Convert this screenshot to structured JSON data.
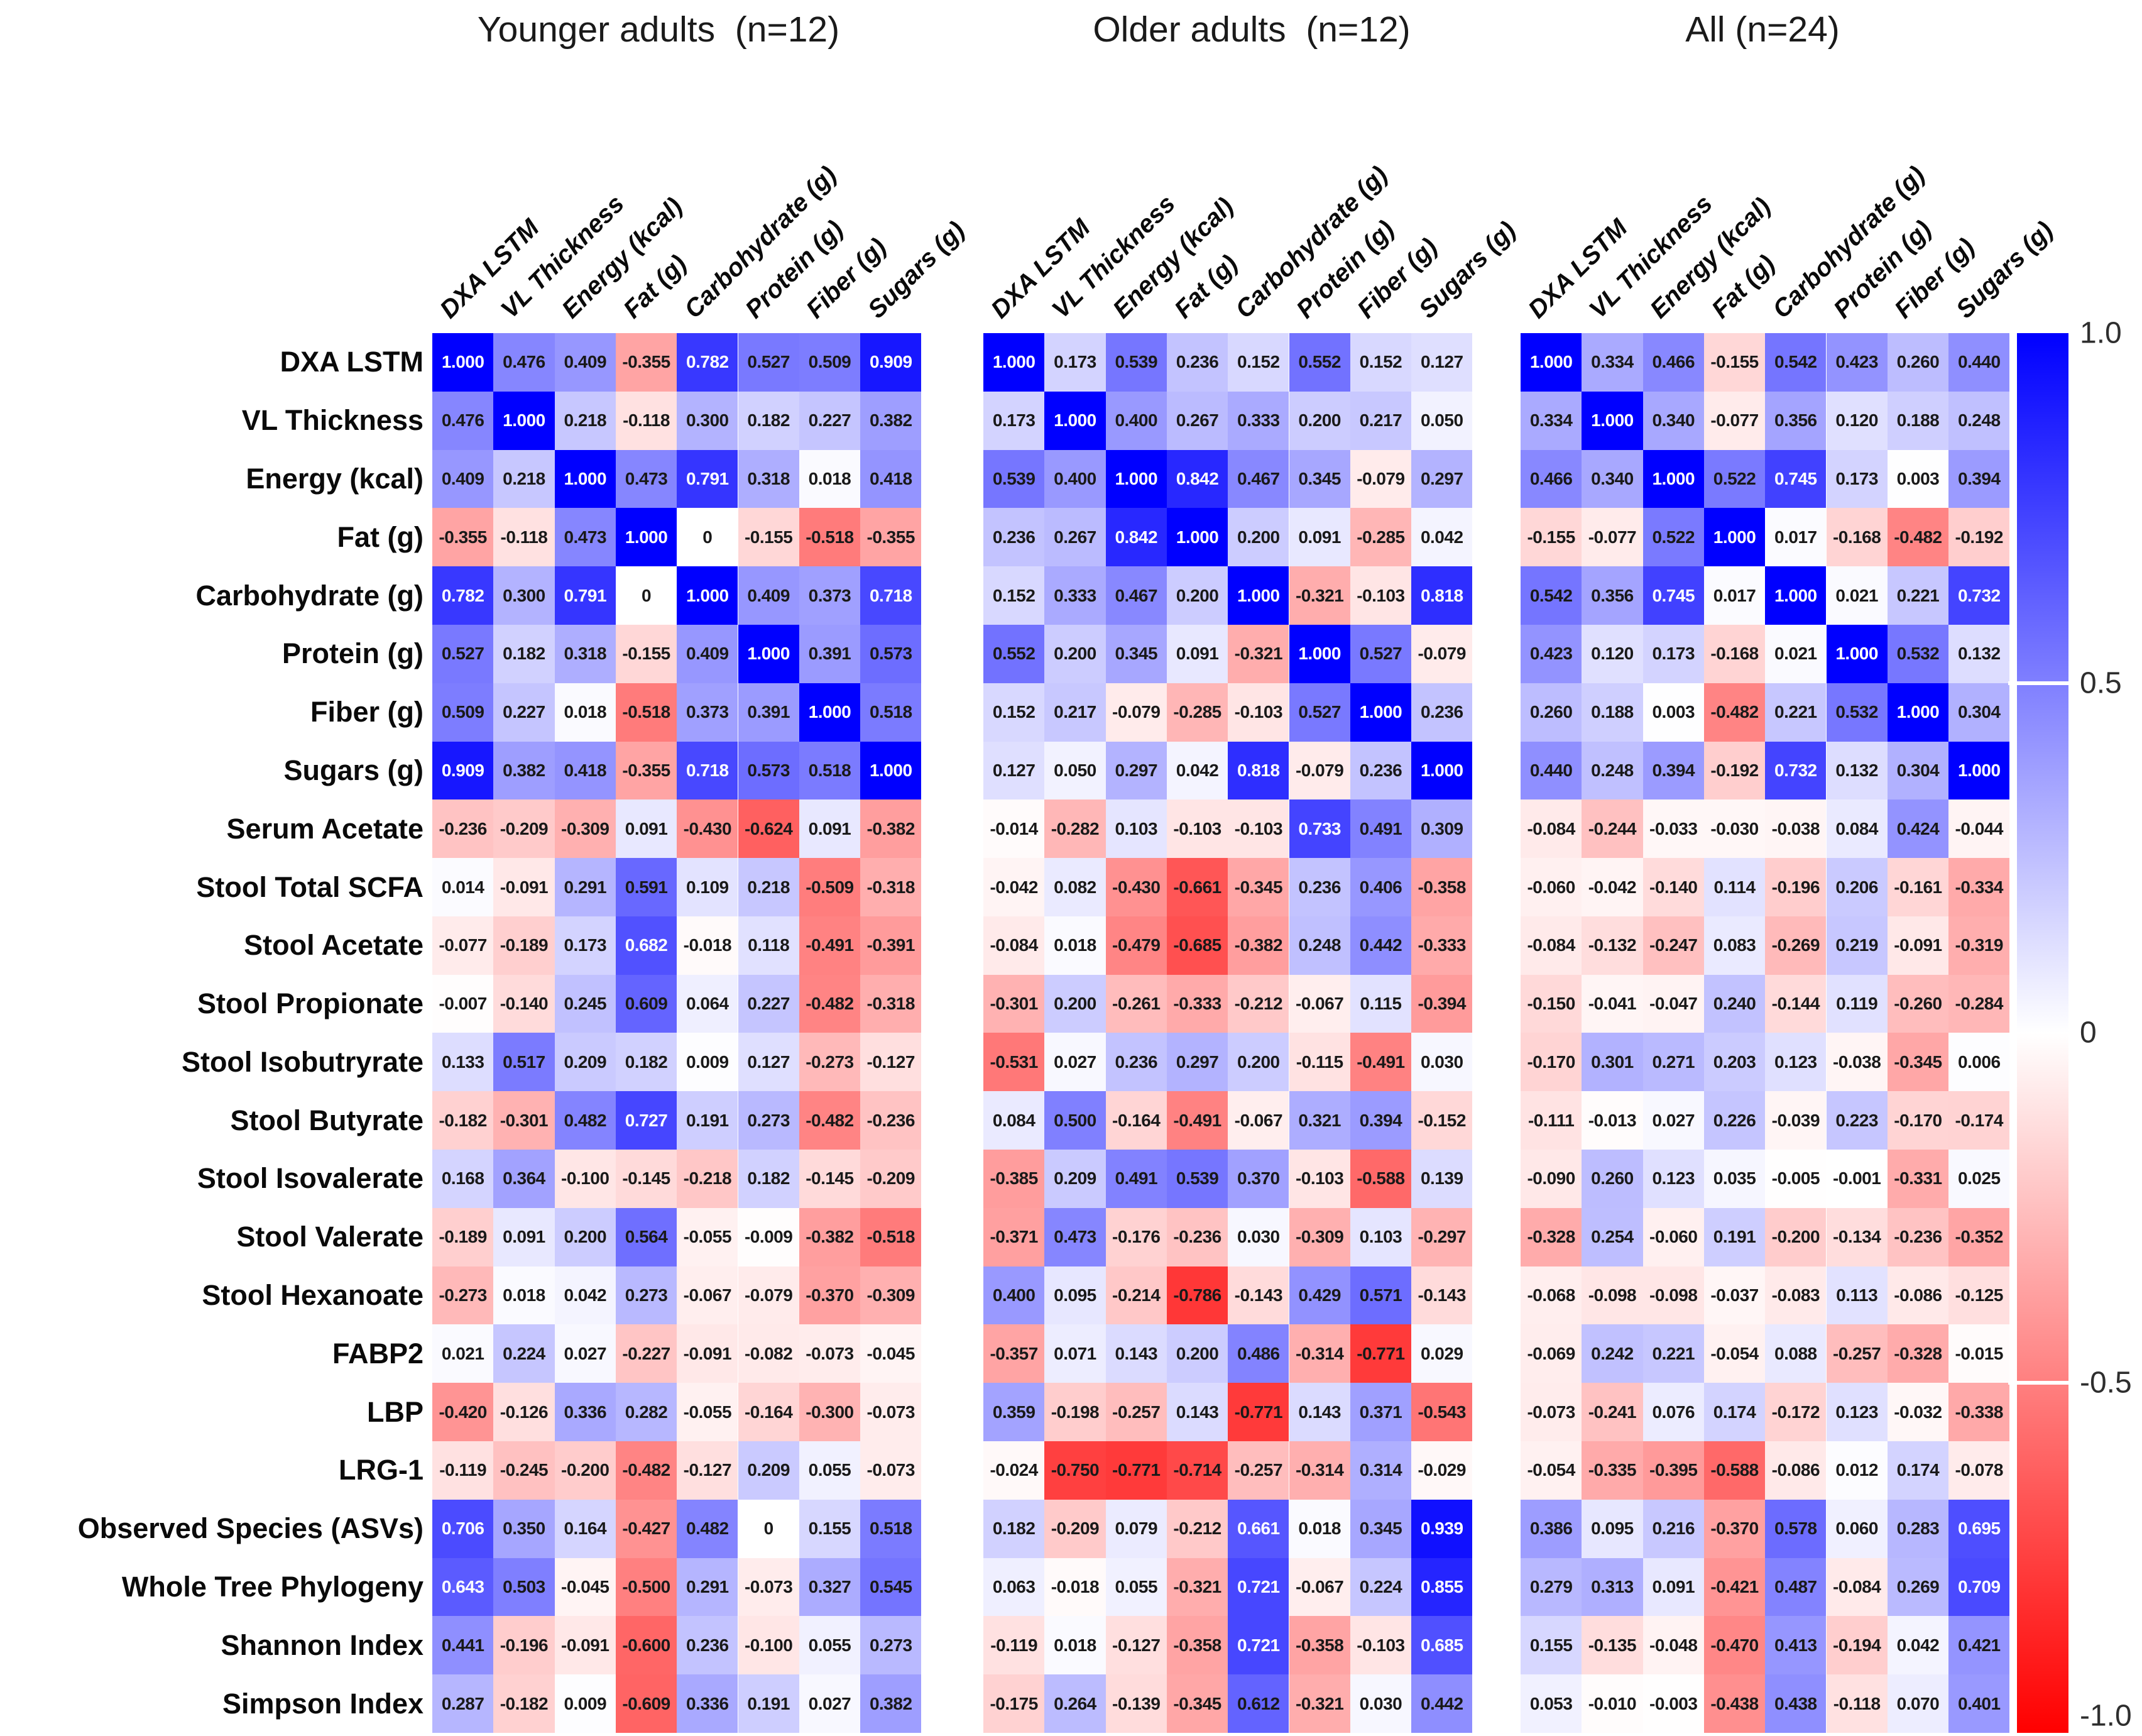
{
  "chart_data": {
    "type": "heatmap",
    "value_range": [
      -1,
      1
    ],
    "grid": false,
    "legend_position": "right",
    "colorscale": {
      "max_color": "#0000ff",
      "mid_color": "#ffffff",
      "min_color": "#ff0000"
    },
    "colorbar": {
      "tick_labels": [
        "1.0",
        "0.5",
        "0",
        "-0.5",
        "-1.0"
      ],
      "tick_values": [
        1.0,
        0.5,
        0,
        -0.5,
        -1.0
      ]
    },
    "columns": [
      "DXA LSTM",
      "VL Thickness",
      "Energy (kcal)",
      "Fat (g)",
      "Carbohydrate (g)",
      "Protein (g)",
      "Fiber (g)",
      "Sugars (g)"
    ],
    "rows": [
      "DXA LSTM",
      "VL Thickness",
      "Energy (kcal)",
      "Fat (g)",
      "Carbohydrate (g)",
      "Protein (g)",
      "Fiber (g)",
      "Sugars (g)",
      "Serum Acetate",
      "Stool Total SCFA",
      "Stool Acetate",
      "Stool Propionate",
      "Stool Isobutryrate",
      "Stool Butyrate",
      "Stool Isovalerate",
      "Stool Valerate",
      "Stool Hexanoate",
      "FABP2",
      "LBP",
      "LRG-1",
      "Observed Species (ASVs)",
      "Whole Tree Phylogeny",
      "Shannon Index",
      "Simpson Index"
    ],
    "panels": [
      {
        "title": "Younger adults  (n=12)",
        "values": [
          [
            "1.000",
            "0.476",
            "0.409",
            "-0.355",
            "0.782",
            "0.527",
            "0.509",
            "0.909"
          ],
          [
            "0.476",
            "1.000",
            "0.218",
            "-0.118",
            "0.300",
            "0.182",
            "0.227",
            "0.382"
          ],
          [
            "0.409",
            "0.218",
            "1.000",
            "0.473",
            "0.791",
            "0.318",
            "0.018",
            "0.418"
          ],
          [
            "-0.355",
            "-0.118",
            "0.473",
            "1.000",
            "0",
            "-0.155",
            "-0.518",
            "-0.355"
          ],
          [
            "0.782",
            "0.300",
            "0.791",
            "0",
            "1.000",
            "0.409",
            "0.373",
            "0.718"
          ],
          [
            "0.527",
            "0.182",
            "0.318",
            "-0.155",
            "0.409",
            "1.000",
            "0.391",
            "0.573"
          ],
          [
            "0.509",
            "0.227",
            "0.018",
            "-0.518",
            "0.373",
            "0.391",
            "1.000",
            "0.518"
          ],
          [
            "0.909",
            "0.382",
            "0.418",
            "-0.355",
            "0.718",
            "0.573",
            "0.518",
            "1.000"
          ],
          [
            "-0.236",
            "-0.209",
            "-0.309",
            "0.091",
            "-0.430",
            "-0.624",
            "0.091",
            "-0.382"
          ],
          [
            "0.014",
            "-0.091",
            "0.291",
            "0.591",
            "0.109",
            "0.218",
            "-0.509",
            "-0.318"
          ],
          [
            "-0.077",
            "-0.189",
            "0.173",
            "0.682",
            "-0.018",
            "0.118",
            "-0.491",
            "-0.391"
          ],
          [
            "-0.007",
            "-0.140",
            "0.245",
            "0.609",
            "0.064",
            "0.227",
            "-0.482",
            "-0.318"
          ],
          [
            "0.133",
            "0.517",
            "0.209",
            "0.182",
            "0.009",
            "0.127",
            "-0.273",
            "-0.127"
          ],
          [
            "-0.182",
            "-0.301",
            "0.482",
            "0.727",
            "0.191",
            "0.273",
            "-0.482",
            "-0.236"
          ],
          [
            "0.168",
            "0.364",
            "-0.100",
            "-0.145",
            "-0.218",
            "0.182",
            "-0.145",
            "-0.209"
          ],
          [
            "-0.189",
            "0.091",
            "0.200",
            "0.564",
            "-0.055",
            "-0.009",
            "-0.382",
            "-0.518"
          ],
          [
            "-0.273",
            "0.018",
            "0.042",
            "0.273",
            "-0.067",
            "-0.079",
            "-0.370",
            "-0.309"
          ],
          [
            "0.021",
            "0.224",
            "0.027",
            "-0.227",
            "-0.091",
            "-0.082",
            "-0.073",
            "-0.045"
          ],
          [
            "-0.420",
            "-0.126",
            "0.336",
            "0.282",
            "-0.055",
            "-0.164",
            "-0.300",
            "-0.073"
          ],
          [
            "-0.119",
            "-0.245",
            "-0.200",
            "-0.482",
            "-0.127",
            "0.209",
            "0.055",
            "-0.073"
          ],
          [
            "0.706",
            "0.350",
            "0.164",
            "-0.427",
            "0.482",
            "0",
            "0.155",
            "0.518"
          ],
          [
            "0.643",
            "0.503",
            "-0.045",
            "-0.500",
            "0.291",
            "-0.073",
            "0.327",
            "0.545"
          ],
          [
            "0.441",
            "-0.196",
            "-0.091",
            "-0.600",
            "0.236",
            "-0.100",
            "0.055",
            "0.273"
          ],
          [
            "0.287",
            "-0.182",
            "0.009",
            "-0.609",
            "0.336",
            "0.191",
            "0.027",
            "0.382"
          ]
        ]
      },
      {
        "title": "Older adults  (n=12)",
        "values": [
          [
            "1.000",
            "0.173",
            "0.539",
            "0.236",
            "0.152",
            "0.552",
            "0.152",
            "0.127"
          ],
          [
            "0.173",
            "1.000",
            "0.400",
            "0.267",
            "0.333",
            "0.200",
            "0.217",
            "0.050"
          ],
          [
            "0.539",
            "0.400",
            "1.000",
            "0.842",
            "0.467",
            "0.345",
            "-0.079",
            "0.297"
          ],
          [
            "0.236",
            "0.267",
            "0.842",
            "1.000",
            "0.200",
            "0.091",
            "-0.285",
            "0.042"
          ],
          [
            "0.152",
            "0.333",
            "0.467",
            "0.200",
            "1.000",
            "-0.321",
            "-0.103",
            "0.818"
          ],
          [
            "0.552",
            "0.200",
            "0.345",
            "0.091",
            "-0.321",
            "1.000",
            "0.527",
            "-0.079"
          ],
          [
            "0.152",
            "0.217",
            "-0.079",
            "-0.285",
            "-0.103",
            "0.527",
            "1.000",
            "0.236"
          ],
          [
            "0.127",
            "0.050",
            "0.297",
            "0.042",
            "0.818",
            "-0.079",
            "0.236",
            "1.000"
          ],
          [
            "-0.014",
            "-0.282",
            "0.103",
            "-0.103",
            "-0.103",
            "0.733",
            "0.491",
            "0.309"
          ],
          [
            "-0.042",
            "0.082",
            "-0.430",
            "-0.661",
            "-0.345",
            "0.236",
            "0.406",
            "-0.358"
          ],
          [
            "-0.084",
            "0.018",
            "-0.479",
            "-0.685",
            "-0.382",
            "0.248",
            "0.442",
            "-0.333"
          ],
          [
            "-0.301",
            "0.200",
            "-0.261",
            "-0.333",
            "-0.212",
            "-0.067",
            "0.115",
            "-0.394"
          ],
          [
            "-0.531",
            "0.027",
            "0.236",
            "0.297",
            "0.200",
            "-0.115",
            "-0.491",
            "0.030"
          ],
          [
            "0.084",
            "0.500",
            "-0.164",
            "-0.491",
            "-0.067",
            "0.321",
            "0.394",
            "-0.152"
          ],
          [
            "-0.385",
            "0.209",
            "0.491",
            "0.539",
            "0.370",
            "-0.103",
            "-0.588",
            "0.139"
          ],
          [
            "-0.371",
            "0.473",
            "-0.176",
            "-0.236",
            "0.030",
            "-0.309",
            "0.103",
            "-0.297"
          ],
          [
            "0.400",
            "0.095",
            "-0.214",
            "-0.786",
            "-0.143",
            "0.429",
            "0.571",
            "-0.143"
          ],
          [
            "-0.357",
            "0.071",
            "0.143",
            "0.200",
            "0.486",
            "-0.314",
            "-0.771",
            "0.029"
          ],
          [
            "0.359",
            "-0.198",
            "-0.257",
            "0.143",
            "-0.771",
            "0.143",
            "0.371",
            "-0.543"
          ],
          [
            "-0.024",
            "-0.750",
            "-0.771",
            "-0.714",
            "-0.257",
            "-0.314",
            "0.314",
            "-0.029"
          ],
          [
            "0.182",
            "-0.209",
            "0.079",
            "-0.212",
            "0.661",
            "0.018",
            "0.345",
            "0.939"
          ],
          [
            "0.063",
            "-0.018",
            "0.055",
            "-0.321",
            "0.721",
            "-0.067",
            "0.224",
            "0.855"
          ],
          [
            "-0.119",
            "0.018",
            "-0.127",
            "-0.358",
            "0.721",
            "-0.358",
            "-0.103",
            "0.685"
          ],
          [
            "-0.175",
            "0.264",
            "-0.139",
            "-0.345",
            "0.612",
            "-0.321",
            "0.030",
            "0.442"
          ]
        ]
      },
      {
        "title": "All (n=24)",
        "values": [
          [
            "1.000",
            "0.334",
            "0.466",
            "-0.155",
            "0.542",
            "0.423",
            "0.260",
            "0.440"
          ],
          [
            "0.334",
            "1.000",
            "0.340",
            "-0.077",
            "0.356",
            "0.120",
            "0.188",
            "0.248"
          ],
          [
            "0.466",
            "0.340",
            "1.000",
            "0.522",
            "0.745",
            "0.173",
            "0.003",
            "0.394"
          ],
          [
            "-0.155",
            "-0.077",
            "0.522",
            "1.000",
            "0.017",
            "-0.168",
            "-0.482",
            "-0.192"
          ],
          [
            "0.542",
            "0.356",
            "0.745",
            "0.017",
            "1.000",
            "0.021",
            "0.221",
            "0.732"
          ],
          [
            "0.423",
            "0.120",
            "0.173",
            "-0.168",
            "0.021",
            "1.000",
            "0.532",
            "0.132"
          ],
          [
            "0.260",
            "0.188",
            "0.003",
            "-0.482",
            "0.221",
            "0.532",
            "1.000",
            "0.304"
          ],
          [
            "0.440",
            "0.248",
            "0.394",
            "-0.192",
            "0.732",
            "0.132",
            "0.304",
            "1.000"
          ],
          [
            "-0.084",
            "-0.244",
            "-0.033",
            "-0.030",
            "-0.038",
            "0.084",
            "0.424",
            "-0.044"
          ],
          [
            "-0.060",
            "-0.042",
            "-0.140",
            "0.114",
            "-0.196",
            "0.206",
            "-0.161",
            "-0.334"
          ],
          [
            "-0.084",
            "-0.132",
            "-0.247",
            "0.083",
            "-0.269",
            "0.219",
            "-0.091",
            "-0.319"
          ],
          [
            "-0.150",
            "-0.041",
            "-0.047",
            "0.240",
            "-0.144",
            "0.119",
            "-0.260",
            "-0.284"
          ],
          [
            "-0.170",
            "0.301",
            "0.271",
            "0.203",
            "0.123",
            "-0.038",
            "-0.345",
            "0.006"
          ],
          [
            "-0.111",
            "-0.013",
            "0.027",
            "0.226",
            "-0.039",
            "0.223",
            "-0.170",
            "-0.174"
          ],
          [
            "-0.090",
            "0.260",
            "0.123",
            "0.035",
            "-0.005",
            "-0.001",
            "-0.331",
            "0.025"
          ],
          [
            "-0.328",
            "0.254",
            "-0.060",
            "0.191",
            "-0.200",
            "-0.134",
            "-0.236",
            "-0.352"
          ],
          [
            "-0.068",
            "-0.098",
            "-0.098",
            "-0.037",
            "-0.083",
            "0.113",
            "-0.086",
            "-0.125"
          ],
          [
            "-0.069",
            "0.242",
            "0.221",
            "-0.054",
            "0.088",
            "-0.257",
            "-0.328",
            "-0.015"
          ],
          [
            "-0.073",
            "-0.241",
            "0.076",
            "0.174",
            "-0.172",
            "0.123",
            "-0.032",
            "-0.338"
          ],
          [
            "-0.054",
            "-0.335",
            "-0.395",
            "-0.588",
            "-0.086",
            "0.012",
            "0.174",
            "-0.078"
          ],
          [
            "0.386",
            "0.095",
            "0.216",
            "-0.370",
            "0.578",
            "0.060",
            "0.283",
            "0.695"
          ],
          [
            "0.279",
            "0.313",
            "0.091",
            "-0.421",
            "0.487",
            "-0.084",
            "0.269",
            "0.709"
          ],
          [
            "0.155",
            "-0.135",
            "-0.048",
            "-0.470",
            "0.413",
            "-0.194",
            "0.042",
            "0.421"
          ],
          [
            "0.053",
            "-0.010",
            "-0.003",
            "-0.438",
            "0.438",
            "-0.118",
            "0.070",
            "0.401"
          ]
        ]
      }
    ]
  }
}
